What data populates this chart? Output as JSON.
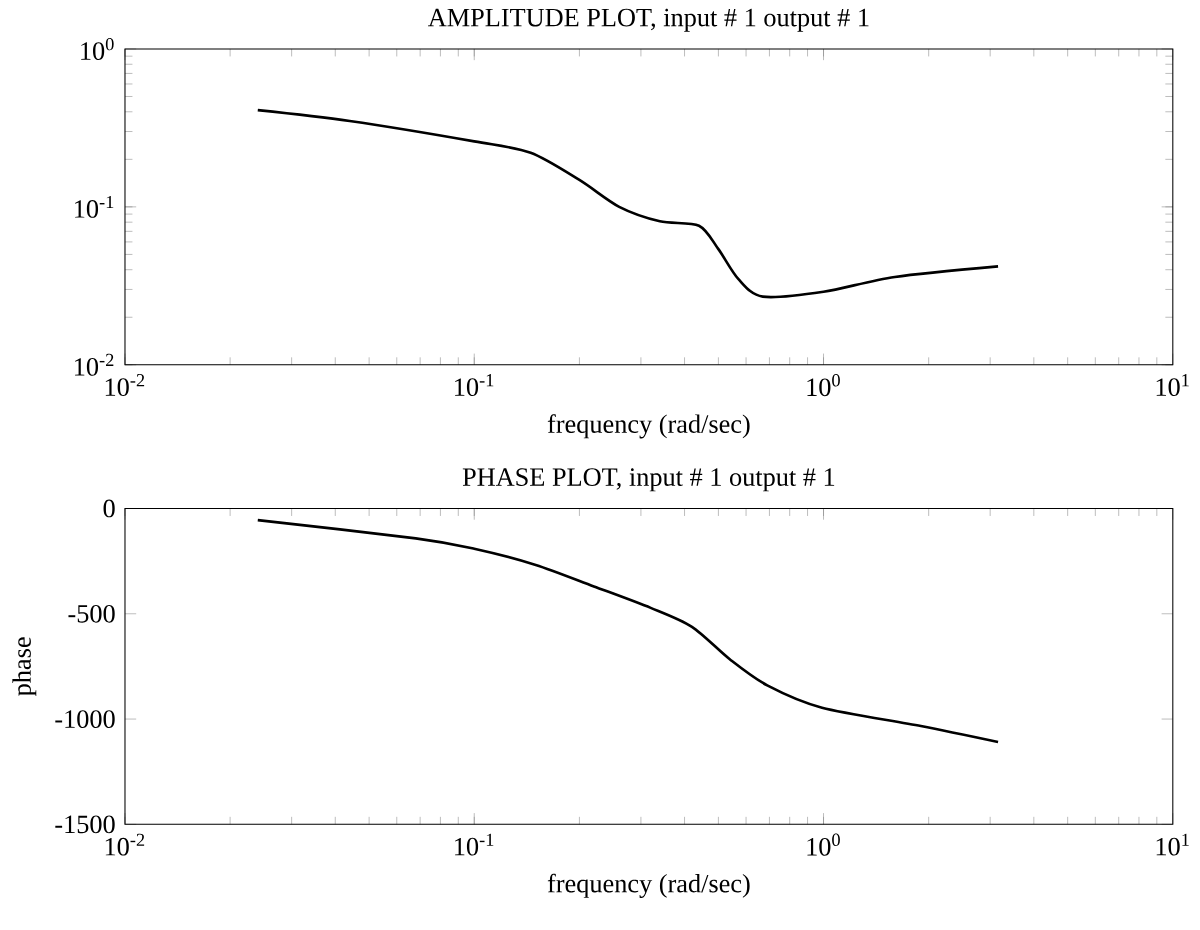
{
  "chart_data": [
    {
      "type": "line",
      "title": "AMPLITUDE PLOT, input # 1 output # 1",
      "xlabel": "frequency (rad/sec)",
      "log": "xy",
      "grid": false,
      "marker": "none",
      "line_style": "solid",
      "x": [
        0.024,
        0.044,
        0.1,
        0.145,
        0.2,
        0.26,
        0.34,
        0.44,
        0.5,
        0.57,
        0.67,
        1.0,
        1.6,
        3.16
      ],
      "series": [
        {
          "color": "#000000",
          "values": [
            0.41,
            0.35,
            0.26,
            0.22,
            0.148,
            0.1,
            0.081,
            0.076,
            0.054,
            0.035,
            0.027,
            0.029,
            0.036,
            0.042
          ]
        }
      ],
      "xlim": [
        0.01,
        10
      ],
      "ylim": [
        0.01,
        1
      ],
      "xticks": [
        {
          "value": 0.01,
          "label": "10$^{-2}$"
        },
        {
          "value": 0.1,
          "label": "10$^{-1}$"
        },
        {
          "value": 1,
          "label": "10$^{0}$"
        },
        {
          "value": 10,
          "label": "10$^{1}$"
        }
      ],
      "yticks": [
        {
          "value": 0.01,
          "label": "10$^{-2}$"
        },
        {
          "value": 0.1,
          "label": "10$^{-1}$"
        },
        {
          "value": 1,
          "label": "10$^{0}$"
        }
      ]
    },
    {
      "type": "line",
      "title": "PHASE PLOT, input # 1 output # 1",
      "xlabel": "frequency (rad/sec)",
      "ylabel": "phase",
      "log": "x",
      "grid": false,
      "marker": "none",
      "line_style": "solid",
      "x": [
        0.024,
        0.068,
        0.1,
        0.15,
        0.22,
        0.32,
        0.42,
        0.54,
        0.69,
        0.99,
        1.9,
        3.16
      ],
      "series": [
        {
          "color": "#000000",
          "values": [
            -55,
            -142,
            -191,
            -268,
            -370,
            -472,
            -562,
            -717,
            -840,
            -946,
            -1033,
            -1109
          ]
        }
      ],
      "xlim": [
        0.01,
        10
      ],
      "ylim": [
        -1500,
        0
      ],
      "xticks": [
        {
          "value": 0.01,
          "label": "10$^{-2}$"
        },
        {
          "value": 0.1,
          "label": "10$^{-1}$"
        },
        {
          "value": 1,
          "label": "10$^{0}$"
        },
        {
          "value": 10,
          "label": "10$^{1}$"
        }
      ],
      "yticks": [
        -1500,
        -1000,
        -500,
        0
      ]
    }
  ]
}
